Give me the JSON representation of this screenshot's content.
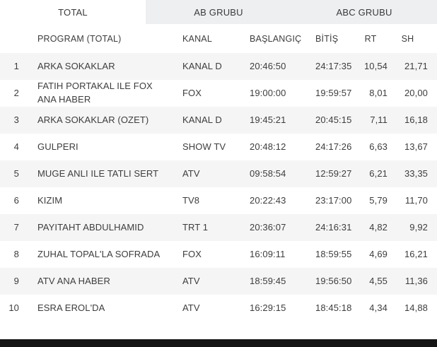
{
  "tabs": [
    {
      "label": "TOTAL",
      "active": true
    },
    {
      "label": "AB GRUBU",
      "active": false
    },
    {
      "label": "ABC GRUBU",
      "active": false
    }
  ],
  "table": {
    "columns": {
      "rank": "",
      "program": "PROGRAM (TOTAL)",
      "kanal": "KANAL",
      "start": "BAŞLANGIÇ",
      "end": "BİTİŞ",
      "rt": "RT",
      "sh": "SH"
    },
    "rows": [
      {
        "rank": "1",
        "program": "ARKA SOKAKLAR",
        "kanal": "KANAL D",
        "start": "20:46:50",
        "end": "24:17:35",
        "rt": "10,54",
        "sh": "21,71"
      },
      {
        "rank": "2",
        "program": "FATIH PORTAKAL ILE FOX ANA HABER",
        "kanal": "FOX",
        "start": "19:00:00",
        "end": "19:59:57",
        "rt": "8,01",
        "sh": "20,00"
      },
      {
        "rank": "3",
        "program": "ARKA SOKAKLAR (OZET)",
        "kanal": "KANAL D",
        "start": "19:45:21",
        "end": "20:45:15",
        "rt": "7,11",
        "sh": "16,18"
      },
      {
        "rank": "4",
        "program": "GULPERI",
        "kanal": "SHOW TV",
        "start": "20:48:12",
        "end": "24:17:26",
        "rt": "6,63",
        "sh": "13,67"
      },
      {
        "rank": "5",
        "program": "MUGE ANLI ILE TATLI SERT",
        "kanal": "ATV",
        "start": "09:58:54",
        "end": "12:59:27",
        "rt": "6,21",
        "sh": "33,35"
      },
      {
        "rank": "6",
        "program": "KIZIM",
        "kanal": "TV8",
        "start": "20:22:43",
        "end": "23:17:00",
        "rt": "5,79",
        "sh": "11,70"
      },
      {
        "rank": "7",
        "program": "PAYITAHT ABDULHAMID",
        "kanal": "TRT 1",
        "start": "20:36:07",
        "end": "24:16:31",
        "rt": "4,82",
        "sh": "9,92"
      },
      {
        "rank": "8",
        "program": "ZUHAL TOPAL'LA SOFRADA",
        "kanal": "FOX",
        "start": "16:09:11",
        "end": "18:59:55",
        "rt": "4,69",
        "sh": "16,21"
      },
      {
        "rank": "9",
        "program": "ATV ANA HABER",
        "kanal": "ATV",
        "start": "18:59:45",
        "end": "19:56:50",
        "rt": "4,55",
        "sh": "11,36"
      },
      {
        "rank": "10",
        "program": "ESRA EROL'DA",
        "kanal": "ATV",
        "start": "16:29:15",
        "end": "18:45:18",
        "rt": "4,34",
        "sh": "14,88"
      }
    ]
  },
  "colors": {
    "tab_inactive_bg": "#edeff1",
    "tab_active_bg": "#ffffff",
    "row_stripe_bg": "#f5f5f5",
    "text": "#3d3d3d",
    "bottom_bar": "#151515"
  }
}
